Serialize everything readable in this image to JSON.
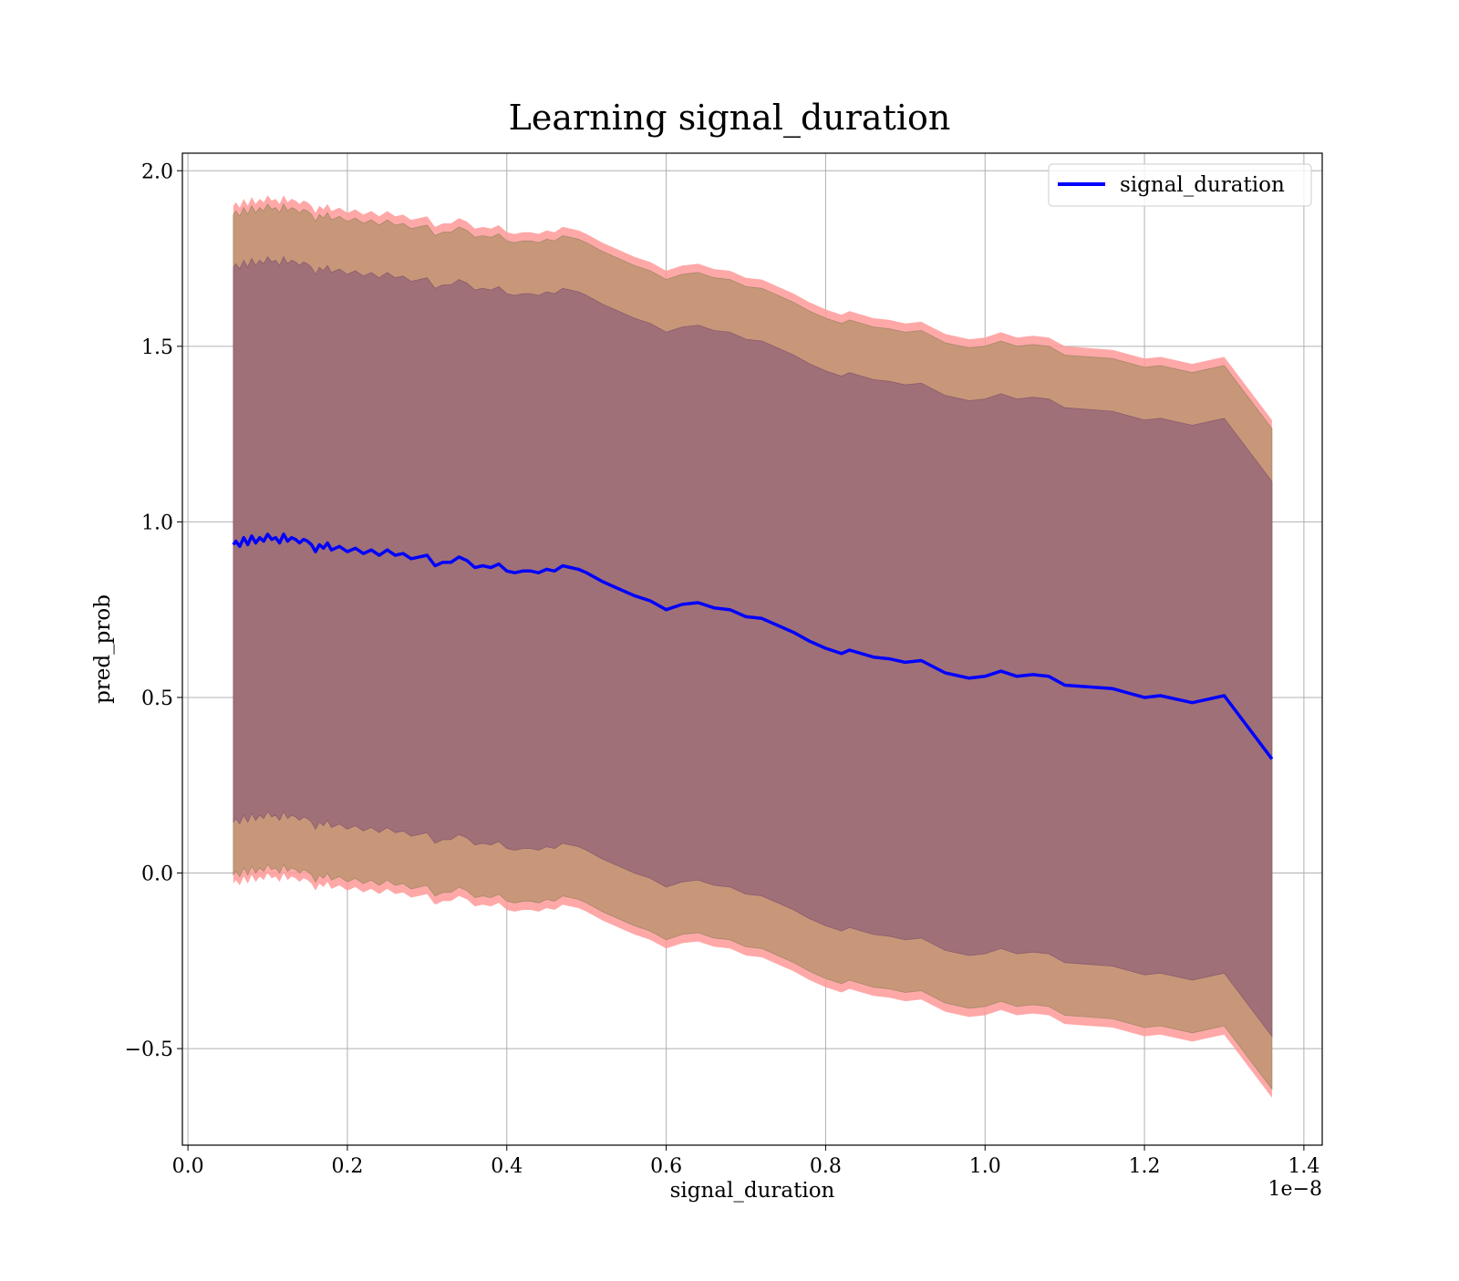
{
  "chart_data": {
    "type": "line",
    "title": "Learning signal_duration",
    "xlabel": "signal_duration",
    "ylabel": "pred_prob",
    "x_offset_text": "1e−8",
    "xlim": [
      -0.007,
      1.423
    ],
    "ylim": [
      -0.775,
      2.05
    ],
    "x_ticks": [
      0.0,
      0.2,
      0.4,
      0.6,
      0.8,
      1.0,
      1.2,
      1.4
    ],
    "x_tick_labels": [
      "0.0",
      "0.2",
      "0.4",
      "0.6",
      "0.8",
      "1.0",
      "1.2",
      "1.4"
    ],
    "y_ticks": [
      -0.5,
      0.0,
      0.5,
      1.0,
      1.5,
      2.0
    ],
    "y_tick_labels": [
      "−0.5",
      "0.0",
      "0.5",
      "1.0",
      "1.5",
      "2.0"
    ],
    "grid": true,
    "legend_position": "top-right",
    "series": [
      {
        "name": "signal_duration",
        "color": "#0000ff",
        "x": [
          0.057,
          0.06,
          0.065,
          0.07,
          0.075,
          0.08,
          0.085,
          0.09,
          0.095,
          0.1,
          0.105,
          0.11,
          0.115,
          0.12,
          0.125,
          0.13,
          0.135,
          0.14,
          0.145,
          0.15,
          0.155,
          0.16,
          0.165,
          0.17,
          0.175,
          0.18,
          0.19,
          0.2,
          0.21,
          0.22,
          0.23,
          0.24,
          0.25,
          0.26,
          0.27,
          0.28,
          0.29,
          0.3,
          0.31,
          0.32,
          0.33,
          0.34,
          0.35,
          0.36,
          0.37,
          0.38,
          0.39,
          0.4,
          0.41,
          0.42,
          0.43,
          0.44,
          0.45,
          0.46,
          0.47,
          0.48,
          0.49,
          0.5,
          0.52,
          0.54,
          0.56,
          0.58,
          0.6,
          0.62,
          0.64,
          0.66,
          0.68,
          0.7,
          0.72,
          0.74,
          0.76,
          0.78,
          0.8,
          0.82,
          0.83,
          0.86,
          0.88,
          0.9,
          0.92,
          0.95,
          0.98,
          1.0,
          1.02,
          1.04,
          1.06,
          1.08,
          1.1,
          1.13,
          1.16,
          1.2,
          1.22,
          1.26,
          1.3,
          1.36
        ],
        "y": [
          0.935,
          0.945,
          0.93,
          0.955,
          0.935,
          0.96,
          0.94,
          0.955,
          0.945,
          0.965,
          0.95,
          0.955,
          0.94,
          0.965,
          0.945,
          0.955,
          0.95,
          0.94,
          0.95,
          0.945,
          0.935,
          0.915,
          0.935,
          0.925,
          0.94,
          0.92,
          0.93,
          0.915,
          0.925,
          0.91,
          0.92,
          0.905,
          0.92,
          0.905,
          0.91,
          0.895,
          0.9,
          0.905,
          0.875,
          0.885,
          0.885,
          0.9,
          0.89,
          0.87,
          0.875,
          0.87,
          0.88,
          0.86,
          0.855,
          0.86,
          0.86,
          0.855,
          0.865,
          0.86,
          0.875,
          0.87,
          0.865,
          0.855,
          0.83,
          0.81,
          0.79,
          0.775,
          0.75,
          0.765,
          0.77,
          0.755,
          0.75,
          0.73,
          0.725,
          0.705,
          0.685,
          0.66,
          0.64,
          0.625,
          0.635,
          0.615,
          0.61,
          0.6,
          0.605,
          0.57,
          0.555,
          0.56,
          0.575,
          0.56,
          0.565,
          0.56,
          0.535,
          0.53,
          0.525,
          0.5,
          0.505,
          0.485,
          0.505,
          0.325
        ],
        "inner_band_offset": [
          0.79,
          0.79,
          0.79,
          0.79,
          0.79,
          0.79,
          0.79,
          0.79,
          0.79,
          0.79,
          0.79,
          0.79,
          0.79,
          0.79,
          0.79,
          0.79,
          0.79,
          0.79,
          0.79,
          0.79,
          0.79,
          0.79,
          0.79,
          0.79,
          0.79,
          0.79,
          0.79,
          0.79,
          0.79,
          0.79,
          0.79,
          0.79,
          0.79,
          0.79,
          0.79,
          0.79,
          0.79,
          0.79,
          0.79,
          0.79,
          0.79,
          0.79,
          0.79,
          0.79,
          0.79,
          0.79,
          0.79,
          0.79,
          0.79,
          0.79,
          0.79,
          0.79,
          0.79,
          0.79,
          0.79,
          0.79,
          0.79,
          0.79,
          0.79,
          0.79,
          0.79,
          0.79,
          0.79,
          0.79,
          0.79,
          0.79,
          0.79,
          0.79,
          0.79,
          0.79,
          0.79,
          0.79,
          0.79,
          0.79,
          0.79,
          0.79,
          0.79,
          0.79,
          0.79,
          0.79,
          0.79,
          0.79,
          0.79,
          0.79,
          0.79,
          0.79,
          0.79,
          0.79,
          0.79,
          0.79,
          0.79,
          0.79,
          0.79,
          0.79
        ],
        "outer_band_offset": [
          0.94,
          0.94,
          0.94,
          0.94,
          0.94,
          0.94,
          0.94,
          0.94,
          0.94,
          0.94,
          0.94,
          0.94,
          0.94,
          0.94,
          0.94,
          0.94,
          0.94,
          0.94,
          0.94,
          0.94,
          0.94,
          0.94,
          0.94,
          0.94,
          0.94,
          0.94,
          0.94,
          0.94,
          0.94,
          0.94,
          0.94,
          0.94,
          0.94,
          0.94,
          0.94,
          0.94,
          0.94,
          0.94,
          0.94,
          0.94,
          0.94,
          0.94,
          0.94,
          0.94,
          0.94,
          0.94,
          0.94,
          0.94,
          0.94,
          0.94,
          0.94,
          0.94,
          0.94,
          0.94,
          0.94,
          0.94,
          0.94,
          0.94,
          0.94,
          0.94,
          0.94,
          0.94,
          0.94,
          0.94,
          0.94,
          0.94,
          0.94,
          0.94,
          0.94,
          0.94,
          0.94,
          0.94,
          0.94,
          0.94,
          0.94,
          0.94,
          0.94,
          0.94,
          0.94,
          0.94,
          0.94,
          0.94,
          0.94,
          0.94,
          0.94,
          0.94,
          0.94,
          0.94,
          0.94,
          0.94,
          0.94,
          0.94,
          0.94,
          0.94
        ],
        "outermost_band_offset": [
          0.965,
          0.965,
          0.965,
          0.965,
          0.965,
          0.965,
          0.965,
          0.965,
          0.965,
          0.965,
          0.965,
          0.965,
          0.965,
          0.965,
          0.965,
          0.965,
          0.965,
          0.965,
          0.965,
          0.965,
          0.965,
          0.965,
          0.965,
          0.965,
          0.965,
          0.965,
          0.965,
          0.965,
          0.965,
          0.965,
          0.965,
          0.965,
          0.965,
          0.965,
          0.965,
          0.965,
          0.965,
          0.965,
          0.965,
          0.965,
          0.965,
          0.965,
          0.965,
          0.965,
          0.965,
          0.965,
          0.965,
          0.965,
          0.965,
          0.965,
          0.965,
          0.965,
          0.965,
          0.965,
          0.965,
          0.965,
          0.965,
          0.965,
          0.965,
          0.965,
          0.965,
          0.965,
          0.965,
          0.965,
          0.965,
          0.965,
          0.965,
          0.965,
          0.965,
          0.965,
          0.965,
          0.965,
          0.965,
          0.965,
          0.965,
          0.965,
          0.965,
          0.965,
          0.965,
          0.965,
          0.965,
          0.965,
          0.965,
          0.965,
          0.965,
          0.965,
          0.965,
          0.965,
          0.965,
          0.965,
          0.965,
          0.965,
          0.965,
          0.965
        ]
      }
    ],
    "band_colors": {
      "outermost": "#ff9999",
      "outer": "#c8977a",
      "inner": "#a07078"
    }
  }
}
